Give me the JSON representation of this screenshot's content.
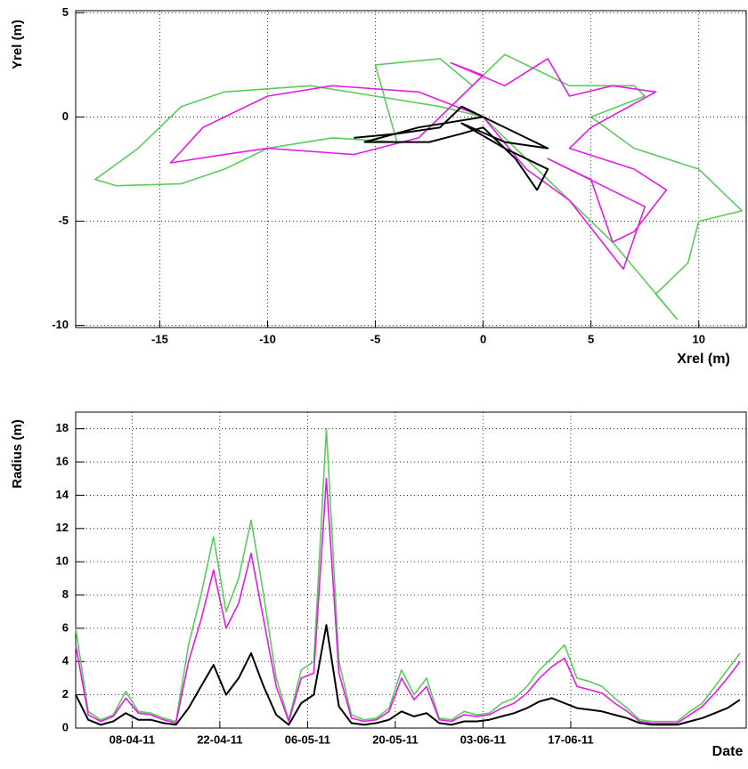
{
  "chart_data": [
    {
      "type": "line",
      "x_label": "Xrel (m)",
      "y_label": "Yrel (m)",
      "xlim": [
        -18.9,
        12.2
      ],
      "ylim": [
        -10.1,
        5.1
      ],
      "xticks": [
        -15,
        -10,
        -5,
        0,
        5,
        10
      ],
      "yticks": [
        -10,
        -5,
        0,
        5
      ],
      "grid": true,
      "series": [
        {
          "color": "#5ccb5c",
          "x": [
            0,
            -2,
            -5,
            -8,
            -12,
            -14,
            -16,
            -18,
            -17,
            -14,
            -12,
            -10,
            -7,
            -4,
            -5,
            -2,
            -0.5,
            1,
            2,
            4,
            7,
            7.5,
            5,
            7,
            10,
            11,
            12,
            10,
            9.5,
            8,
            9,
            6,
            4,
            2,
            0
          ],
          "values": [
            0,
            0.5,
            1,
            1.5,
            1.2,
            0.5,
            -1.5,
            -3,
            -3.3,
            -3.2,
            -2.5,
            -1.5,
            -1,
            -1.2,
            2.5,
            2.8,
            1.5,
            3,
            2.5,
            1.5,
            1.5,
            1,
            0,
            -1.5,
            -2.5,
            -3.5,
            -4.5,
            -5,
            -7,
            -8.5,
            -9.7,
            -6,
            -4,
            -2,
            0
          ]
        },
        {
          "color": "#e619e6",
          "x": [
            0,
            -3,
            -7,
            -10,
            -13,
            -14.5,
            -12,
            -10,
            -6,
            -3,
            -1,
            0,
            -1.5,
            1,
            3,
            4,
            6,
            8,
            5,
            4,
            7,
            8.5,
            7,
            6,
            5,
            3,
            7.5,
            6.5,
            4,
            2,
            0
          ],
          "values": [
            0,
            1.2,
            1.5,
            1,
            -0.5,
            -2.2,
            -1.8,
            -1.5,
            -1.8,
            -1,
            1,
            2,
            2.6,
            1.5,
            2.8,
            1,
            1.5,
            1.2,
            -0.5,
            -1.5,
            -2.5,
            -3.5,
            -5.5,
            -6,
            -3,
            -2,
            -4.3,
            -7.3,
            -4,
            -2.5,
            0
          ]
        },
        {
          "color": "#000000",
          "x": [
            -6,
            -4,
            -2,
            -1,
            0,
            2,
            3,
            1,
            -1,
            1,
            3,
            2.5,
            1.5,
            0,
            -1,
            -2.5,
            -5.5,
            -3,
            0
          ],
          "values": [
            -1,
            -0.8,
            -0.5,
            0.5,
            0,
            -1,
            -1.5,
            -1.2,
            -0.3,
            -1.5,
            -2.5,
            -3.5,
            -2,
            -0.5,
            -0.8,
            -1.2,
            -1.2,
            -0.5,
            0
          ]
        }
      ]
    },
    {
      "type": "line",
      "x_label": "Date",
      "y_label": "Radius (m)",
      "xlim": [
        "2011-03-30",
        "2011-07-15"
      ],
      "ylim": [
        0,
        19
      ],
      "xticks": [
        {
          "value": "2011-04-08",
          "label": "08-04-11"
        },
        {
          "value": "2011-04-22",
          "label": "22-04-11"
        },
        {
          "value": "2011-05-06",
          "label": "06-05-11"
        },
        {
          "value": "2011-05-20",
          "label": "20-05-11"
        },
        {
          "value": "2011-06-03",
          "label": "03-06-11"
        },
        {
          "value": "2011-06-17",
          "label": "17-06-11"
        }
      ],
      "yticks": [
        0,
        2,
        4,
        6,
        8,
        10,
        12,
        14,
        16,
        18
      ],
      "grid": true,
      "x": [
        "2011-03-30",
        "2011-04-01",
        "2011-04-03",
        "2011-04-05",
        "2011-04-07",
        "2011-04-09",
        "2011-04-11",
        "2011-04-13",
        "2011-04-15",
        "2011-04-17",
        "2011-04-19",
        "2011-04-21",
        "2011-04-23",
        "2011-04-25",
        "2011-04-27",
        "2011-04-29",
        "2011-05-01",
        "2011-05-03",
        "2011-05-05",
        "2011-05-07",
        "2011-05-09",
        "2011-05-11",
        "2011-05-13",
        "2011-05-15",
        "2011-05-17",
        "2011-05-19",
        "2011-05-21",
        "2011-05-23",
        "2011-05-25",
        "2011-05-27",
        "2011-05-29",
        "2011-05-31",
        "2011-06-02",
        "2011-06-04",
        "2011-06-06",
        "2011-06-08",
        "2011-06-10",
        "2011-06-12",
        "2011-06-14",
        "2011-06-16",
        "2011-06-18",
        "2011-06-20",
        "2011-06-22",
        "2011-06-24",
        "2011-06-26",
        "2011-06-28",
        "2011-06-30",
        "2011-07-02",
        "2011-07-04",
        "2011-07-06",
        "2011-07-08",
        "2011-07-10",
        "2011-07-12",
        "2011-07-14"
      ],
      "series": [
        {
          "color": "#5ccb5c",
          "values": [
            6,
            1,
            0.5,
            0.8,
            2.2,
            1,
            0.9,
            0.6,
            0.4,
            5,
            8,
            11.5,
            7,
            9,
            12.5,
            8,
            3,
            0.5,
            3.5,
            4,
            18,
            4,
            0.8,
            0.5,
            0.6,
            1.2,
            3.5,
            2,
            3,
            0.6,
            0.5,
            1,
            0.8,
            0.9,
            1.5,
            1.8,
            2.5,
            3.5,
            4.2,
            5,
            3,
            2.8,
            2.5,
            1.8,
            1.2,
            0.5,
            0.4,
            0.4,
            0.4,
            1,
            1.5,
            2.5,
            3.5,
            4.5
          ]
        },
        {
          "color": "#e619e6",
          "values": [
            5,
            0.8,
            0.4,
            0.7,
            1.8,
            0.9,
            0.8,
            0.5,
            0.3,
            4,
            6.5,
            9.5,
            6,
            7.5,
            10.5,
            6.5,
            2.5,
            0.4,
            3,
            3.3,
            15,
            3.3,
            0.6,
            0.4,
            0.5,
            1,
            3,
            1.7,
            2.5,
            0.5,
            0.4,
            0.8,
            0.7,
            0.8,
            1.2,
            1.5,
            2.1,
            3,
            3.7,
            4.2,
            2.5,
            2.3,
            2.1,
            1.5,
            1,
            0.4,
            0.3,
            0.3,
            0.3,
            0.8,
            1.3,
            2.1,
            3,
            4
          ]
        },
        {
          "color": "#000000",
          "values": [
            2,
            0.5,
            0.2,
            0.4,
            0.9,
            0.5,
            0.5,
            0.3,
            0.2,
            1.2,
            2.5,
            3.8,
            2,
            3,
            4.5,
            2.5,
            0.8,
            0.2,
            1.5,
            2,
            6.2,
            1.3,
            0.3,
            0.2,
            0.3,
            0.5,
            1,
            0.7,
            0.9,
            0.3,
            0.2,
            0.4,
            0.4,
            0.5,
            0.7,
            0.9,
            1.2,
            1.6,
            1.8,
            1.5,
            1.2,
            1.1,
            1,
            0.8,
            0.6,
            0.3,
            0.2,
            0.2,
            0.2,
            0.4,
            0.6,
            0.9,
            1.2,
            1.7
          ]
        }
      ]
    }
  ]
}
